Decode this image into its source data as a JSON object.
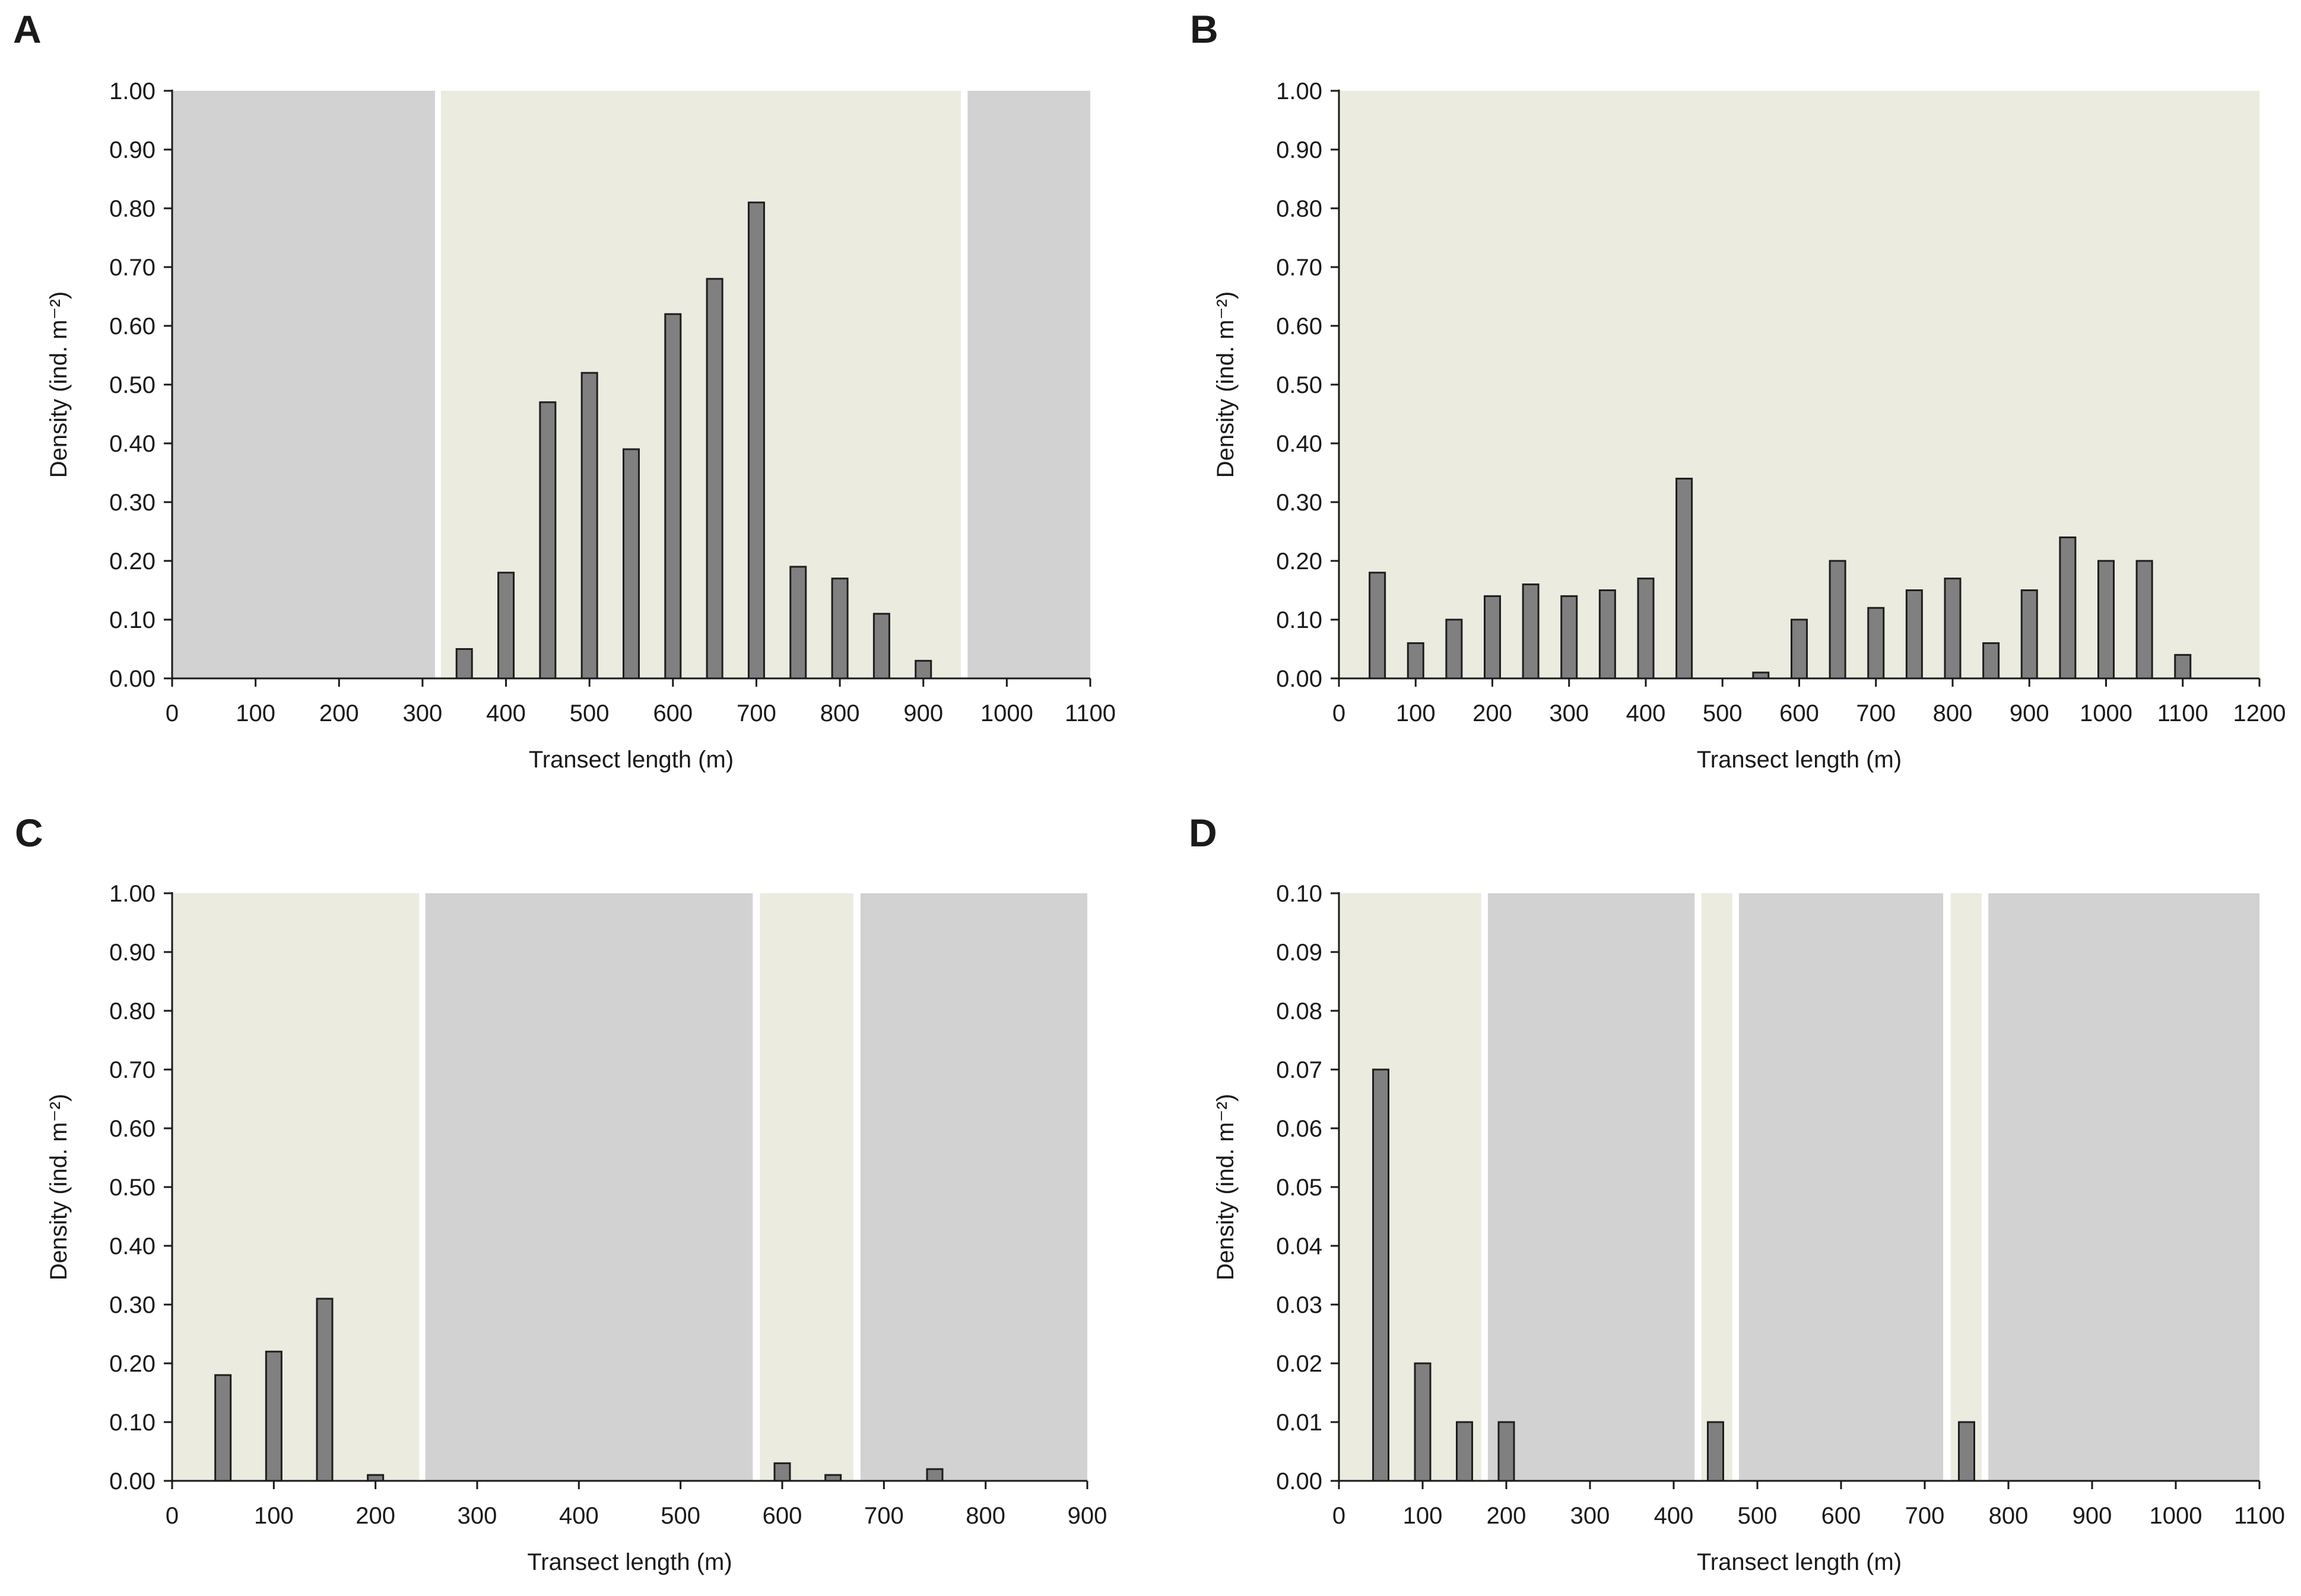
{
  "colors": {
    "habitat_light": "#ebebe0",
    "habitat_gray": "#d2d2d2",
    "bar_fill": "#808080",
    "bar_stroke": "#1e1e1e",
    "axis": "#1a1a1a"
  },
  "chart_data": [
    {
      "id": "A",
      "panel_letter": "A",
      "type": "bar",
      "title": "",
      "xlabel": "Transect length (m)",
      "ylabel": "Density (ind. m⁻²)",
      "xlim": [
        0,
        1100
      ],
      "ylim": [
        0,
        1.0
      ],
      "x_ticks": [
        "0",
        "100",
        "200",
        "300",
        "400",
        "500",
        "600",
        "700",
        "800",
        "900",
        "1000",
        "1100"
      ],
      "y_ticks": [
        "0.00",
        "0.10",
        "0.20",
        "0.30",
        "0.40",
        "0.50",
        "0.60",
        "0.70",
        "0.80",
        "0.90",
        "1.00"
      ],
      "x": [
        350,
        400,
        450,
        500,
        550,
        600,
        650,
        700,
        750,
        800,
        850,
        900
      ],
      "values": [
        0.05,
        0.18,
        0.47,
        0.52,
        0.39,
        0.62,
        0.68,
        0.81,
        0.19,
        0.17,
        0.11,
        0.03
      ],
      "background_zones": [
        {
          "from": 0,
          "to": 315,
          "kind": "gray"
        },
        {
          "from": 322,
          "to": 945,
          "kind": "light"
        },
        {
          "from": 953,
          "to": 1100,
          "kind": "gray"
        }
      ]
    },
    {
      "id": "B",
      "panel_letter": "B",
      "type": "bar",
      "title": "",
      "xlabel": "Transect length (m)",
      "ylabel": "Density (ind. m⁻²)",
      "xlim": [
        0,
        1200
      ],
      "ylim": [
        0,
        1.0
      ],
      "x_ticks": [
        "0",
        "100",
        "200",
        "300",
        "400",
        "500",
        "600",
        "700",
        "800",
        "900",
        "1000",
        "1100",
        "1200"
      ],
      "y_ticks": [
        "0.00",
        "0.10",
        "0.20",
        "0.30",
        "0.40",
        "0.50",
        "0.60",
        "0.70",
        "0.80",
        "0.90",
        "1.00"
      ],
      "x": [
        50,
        100,
        150,
        200,
        250,
        300,
        350,
        400,
        450,
        550,
        600,
        650,
        700,
        750,
        800,
        850,
        900,
        950,
        1000,
        1050,
        1100
      ],
      "values": [
        0.18,
        0.06,
        0.1,
        0.14,
        0.16,
        0.14,
        0.15,
        0.17,
        0.34,
        0.01,
        0.1,
        0.2,
        0.12,
        0.15,
        0.17,
        0.06,
        0.15,
        0.24,
        0.2,
        0.2,
        0.04
      ],
      "background_zones": [
        {
          "from": 0,
          "to": 1200,
          "kind": "light"
        }
      ]
    },
    {
      "id": "C",
      "panel_letter": "C",
      "type": "bar",
      "title": "",
      "xlabel": "Transect length (m)",
      "ylabel": "Density (ind. m⁻²)",
      "xlim": [
        0,
        900
      ],
      "ylim": [
        0,
        1.0
      ],
      "x_ticks": [
        "0",
        "100",
        "200",
        "300",
        "400",
        "500",
        "600",
        "700",
        "800",
        "900"
      ],
      "y_ticks": [
        "0.00",
        "0.10",
        "0.20",
        "0.30",
        "0.40",
        "0.50",
        "0.60",
        "0.70",
        "0.80",
        "0.90",
        "1.00"
      ],
      "x": [
        50,
        100,
        150,
        200,
        600,
        650,
        750
      ],
      "values": [
        0.18,
        0.22,
        0.31,
        0.01,
        0.03,
        0.01,
        0.02
      ],
      "background_zones": [
        {
          "from": 0,
          "to": 243,
          "kind": "light"
        },
        {
          "from": 249,
          "to": 571,
          "kind": "gray"
        },
        {
          "from": 578,
          "to": 670,
          "kind": "light"
        },
        {
          "from": 677,
          "to": 900,
          "kind": "gray"
        }
      ]
    },
    {
      "id": "D",
      "panel_letter": "D",
      "type": "bar",
      "title": "",
      "xlabel": "Transect length (m)",
      "ylabel": "Density (ind. m⁻²)",
      "xlim": [
        0,
        1100
      ],
      "ylim": [
        0,
        0.1
      ],
      "x_ticks": [
        "0",
        "100",
        "200",
        "300",
        "400",
        "500",
        "600",
        "700",
        "800",
        "900",
        "1000",
        "1100"
      ],
      "y_ticks": [
        "0.00",
        "0.01",
        "0.02",
        "0.03",
        "0.04",
        "0.05",
        "0.06",
        "0.07",
        "0.08",
        "0.09",
        "0.10"
      ],
      "x": [
        50,
        100,
        150,
        200,
        450,
        750
      ],
      "values": [
        0.07,
        0.02,
        0.01,
        0.01,
        0.01,
        0.01
      ],
      "background_zones": [
        {
          "from": 0,
          "to": 170,
          "kind": "light"
        },
        {
          "from": 178,
          "to": 425,
          "kind": "gray"
        },
        {
          "from": 433,
          "to": 470,
          "kind": "light"
        },
        {
          "from": 478,
          "to": 722,
          "kind": "gray"
        },
        {
          "from": 731,
          "to": 768,
          "kind": "light"
        },
        {
          "from": 776,
          "to": 1100,
          "kind": "gray"
        }
      ]
    }
  ]
}
